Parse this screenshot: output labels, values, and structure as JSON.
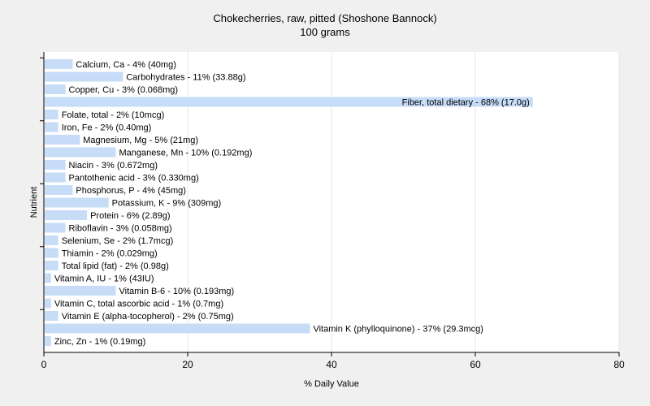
{
  "chart_data": {
    "type": "bar",
    "orientation": "horizontal",
    "title": "Chokecherries, raw, pitted (Shoshone Bannock)",
    "subtitle": "100 grams",
    "xlabel": "% Daily Value",
    "ylabel": "Nutrient",
    "xlim": [
      0,
      80
    ],
    "xticks": [
      0,
      20,
      40,
      60,
      80
    ],
    "grid": true,
    "bar_color": "#c6dcf7",
    "categories": [
      "Calcium, Ca",
      "Carbohydrates",
      "Copper, Cu",
      "Fiber, total dietary",
      "Folate, total",
      "Iron, Fe",
      "Magnesium, Mg",
      "Manganese, Mn",
      "Niacin",
      "Pantothenic acid",
      "Phosphorus, P",
      "Potassium, K",
      "Protein",
      "Riboflavin",
      "Selenium, Se",
      "Thiamin",
      "Total lipid (fat)",
      "Vitamin A, IU",
      "Vitamin B-6",
      "Vitamin C, total ascorbic acid",
      "Vitamin E (alpha-tocopherol)",
      "Vitamin K (phylloquinone)",
      "Zinc, Zn"
    ],
    "values": [
      4,
      11,
      3,
      68,
      2,
      2,
      5,
      10,
      3,
      3,
      4,
      9,
      6,
      3,
      2,
      2,
      2,
      1,
      10,
      1,
      2,
      37,
      1
    ],
    "labels": [
      "Calcium, Ca - 4% (40mg)",
      "Carbohydrates - 11% (33.88g)",
      "Copper, Cu - 3% (0.068mg)",
      "Fiber, total dietary - 68% (17.0g)",
      "Folate, total - 2% (10mcg)",
      "Iron, Fe - 2% (0.40mg)",
      "Magnesium, Mg - 5% (21mg)",
      "Manganese, Mn - 10% (0.192mg)",
      "Niacin - 3% (0.672mg)",
      "Pantothenic acid - 3% (0.330mg)",
      "Phosphorus, P - 4% (45mg)",
      "Potassium, K - 9% (309mg)",
      "Protein - 6% (2.89g)",
      "Riboflavin - 3% (0.058mg)",
      "Selenium, Se - 2% (1.7mcg)",
      "Thiamin - 2% (0.029mg)",
      "Total lipid (fat) - 2% (0.98g)",
      "Vitamin A, IU - 1% (43IU)",
      "Vitamin B-6 - 10% (0.193mg)",
      "Vitamin C, total ascorbic acid - 1% (0.7mg)",
      "Vitamin E (alpha-tocopherol) - 2% (0.75mg)",
      "Vitamin K (phylloquinone) - 37% (29.3mcg)",
      "Zinc, Zn - 1% (0.19mg)"
    ]
  }
}
